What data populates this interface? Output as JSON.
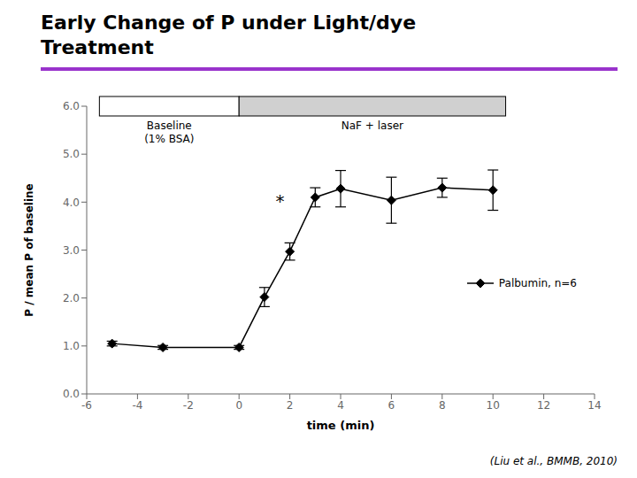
{
  "chart_data": {
    "type": "line",
    "title": "Early Change of P under Light/dye\nTreatment",
    "x_label": "time (min)",
    "y_label": "P / mean P of baseline",
    "x": [
      -5,
      -3,
      0,
      1,
      2,
      3,
      4,
      6,
      8,
      10
    ],
    "series": [
      {
        "name": "Palbumin, n=6",
        "color": "#000000",
        "marker": "diamond",
        "line_style": "solid",
        "values": [
          1.05,
          0.97,
          0.97,
          2.02,
          2.97,
          4.1,
          4.28,
          4.04,
          4.3,
          4.25
        ],
        "error": [
          0.05,
          0.04,
          0.04,
          0.2,
          0.18,
          0.2,
          0.38,
          0.48,
          0.2,
          0.42
        ]
      }
    ],
    "xlim": [
      -6,
      14
    ],
    "xticks": [
      -6,
      -4,
      -2,
      0,
      2,
      4,
      6,
      8,
      10,
      12,
      14
    ],
    "ylim": [
      0.0,
      6.0
    ],
    "yticks": [
      {
        "value": 0.0,
        "label": "0.0"
      },
      {
        "value": 1.0,
        "label": "1.0"
      },
      {
        "value": 2.0,
        "label": "2.0"
      },
      {
        "value": 3.0,
        "label": "3.0"
      },
      {
        "value": 4.0,
        "label": "4.0"
      },
      {
        "value": 5.0,
        "label": "5.0"
      },
      {
        "value": 6.0,
        "label": "6.0"
      }
    ],
    "grid": false,
    "legend": "right",
    "annotations": [
      {
        "text": "Baseline\n(1% BSA)",
        "x_range": [
          -5.5,
          0
        ],
        "color": "#ffffff"
      },
      {
        "text": "NaF + laser",
        "x_range": [
          0,
          10.5
        ],
        "color": "#d0d0d0"
      },
      {
        "text": "*",
        "x": 2.0,
        "y": 4.1
      },
      {
        "text": "(Liu et al., BMMB, 2010)"
      }
    ]
  }
}
